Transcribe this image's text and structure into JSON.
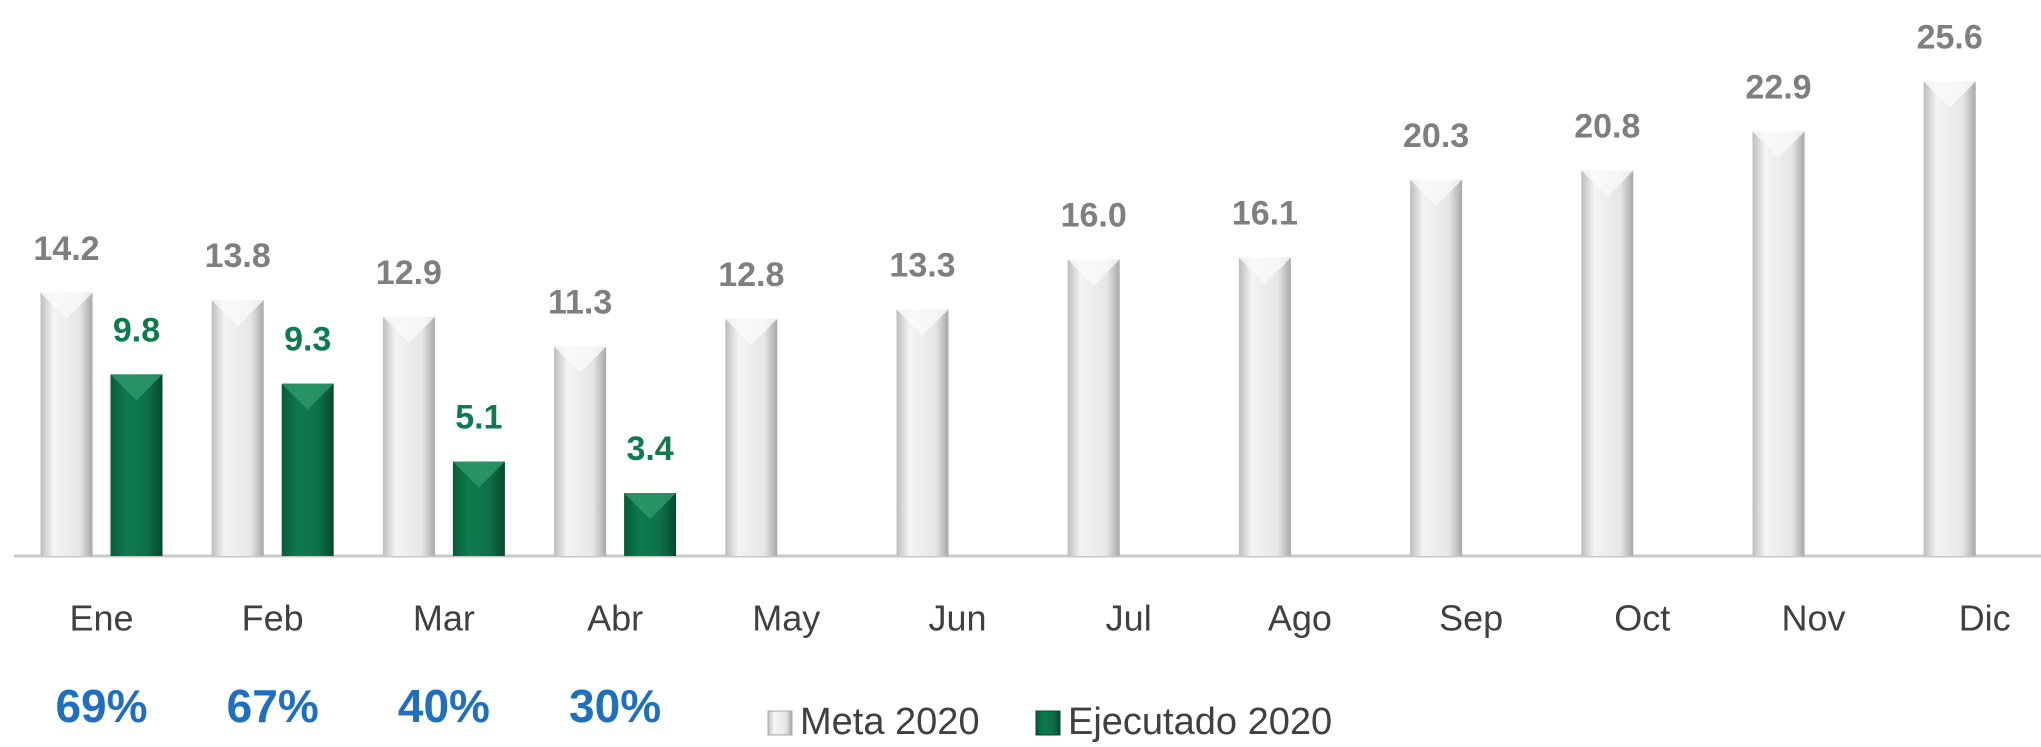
{
  "chart_data": {
    "type": "bar",
    "categories": [
      "Ene",
      "Feb",
      "Mar",
      "Abr",
      "May",
      "Jun",
      "Jul",
      "Ago",
      "Sep",
      "Oct",
      "Nov",
      "Dic"
    ],
    "series": [
      {
        "name": "Meta 2020",
        "color": "#d9d9d9",
        "values": [
          14.2,
          13.8,
          12.9,
          11.3,
          12.8,
          13.3,
          16.0,
          16.1,
          20.3,
          20.8,
          22.9,
          25.6
        ],
        "value_labels": [
          "14.2",
          "13.8",
          "12.9",
          "11.3",
          "12.8",
          "13.3",
          "16.0",
          "16.1",
          "20.3",
          "20.8",
          "22.9",
          "25.6"
        ]
      },
      {
        "name": "Ejecutado 2020",
        "color": "#0e7a4e",
        "values": [
          9.8,
          9.3,
          5.1,
          3.4,
          null,
          null,
          null,
          null,
          null,
          null,
          null,
          null
        ],
        "value_labels": [
          "9.8",
          "9.3",
          "5.1",
          "3.4",
          null,
          null,
          null,
          null,
          null,
          null,
          null,
          null
        ]
      }
    ],
    "annotations": [
      "69%",
      "67%",
      "40%",
      "30%"
    ],
    "ylim": [
      0,
      30
    ],
    "grid": false,
    "legend": "bottom"
  }
}
